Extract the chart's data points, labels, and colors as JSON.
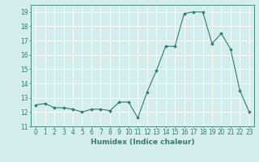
{
  "x": [
    0,
    1,
    2,
    3,
    4,
    5,
    6,
    7,
    8,
    9,
    10,
    11,
    12,
    13,
    14,
    15,
    16,
    17,
    18,
    19,
    20,
    21,
    22,
    23
  ],
  "y": [
    12.5,
    12.6,
    12.3,
    12.3,
    12.2,
    12.0,
    12.2,
    12.2,
    12.1,
    12.7,
    12.7,
    11.6,
    13.4,
    14.9,
    16.6,
    16.6,
    18.9,
    19.0,
    19.0,
    16.8,
    17.5,
    16.4,
    13.5,
    12.0
  ],
  "line_color": "#2e7d6e",
  "marker": "D",
  "marker_size": 1.8,
  "bg_color": "#d4eeee",
  "grid_color": "#b0d8d8",
  "xlabel": "Humidex (Indice chaleur)",
  "ylim": [
    11,
    19.5
  ],
  "yticks": [
    11,
    12,
    13,
    14,
    15,
    16,
    17,
    18,
    19
  ],
  "xticks": [
    0,
    1,
    2,
    3,
    4,
    5,
    6,
    7,
    8,
    9,
    10,
    11,
    12,
    13,
    14,
    15,
    16,
    17,
    18,
    19,
    20,
    21,
    22,
    23
  ],
  "tick_fontsize": 5.5,
  "xlabel_fontsize": 6.5
}
